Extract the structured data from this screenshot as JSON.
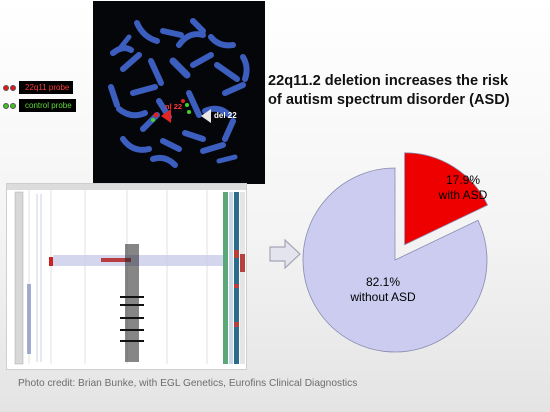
{
  "legend": {
    "items": [
      {
        "label": "22q11 probe",
        "text_color": "#ff3a3a",
        "dot_color": "#e01818"
      },
      {
        "label": "control probe",
        "text_color": "#5fdc3c",
        "dot_color": "#3ec21f"
      }
    ]
  },
  "fish": {
    "label_left": "nl 22",
    "label_right": "del 22"
  },
  "headline": {
    "line1": "22q11.2 deletion increases the risk",
    "line2": "of autism spectrum disorder (ASD)"
  },
  "chart_data": {
    "type": "pie",
    "title": "",
    "slices": [
      {
        "name": "with ASD",
        "value": 17.9,
        "color": "#ee0000",
        "exploded": true
      },
      {
        "name": "without ASD",
        "value": 82.1,
        "color": "#ccccf0",
        "exploded": false
      }
    ],
    "labels": [
      {
        "percent": "17.9%",
        "text": "with ASD"
      },
      {
        "percent": "82.1%",
        "text": "without ASD"
      }
    ]
  },
  "credit": "Photo credit: Brian Bunke, with  EGL Genetics, Eurofins Clinical Diagnostics"
}
